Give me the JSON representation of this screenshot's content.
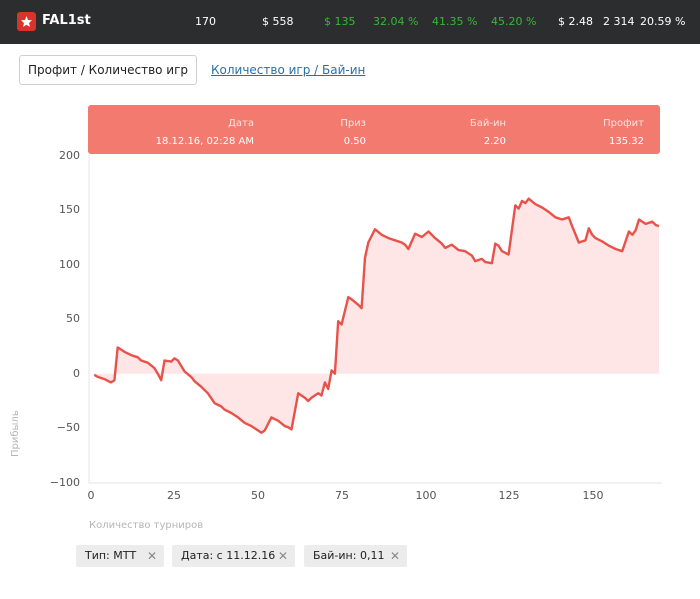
{
  "header": {
    "title": "FAL1st",
    "stats": [
      {
        "text": "170",
        "color": "#ffffff"
      },
      {
        "text": "$ 558",
        "color": "#ffffff"
      },
      {
        "text": "$ 135",
        "color": "#36b936"
      },
      {
        "text": "32.04 %",
        "color": "#36b936"
      },
      {
        "text": "41.35 %",
        "color": "#36b936"
      },
      {
        "text": "45.20 %",
        "color": "#36b936"
      },
      {
        "text": "$ 2.48",
        "color": "#ffffff"
      },
      {
        "text": "2 314",
        "color": "#ffffff"
      },
      {
        "text": "20.59 %",
        "color": "#ffffff"
      }
    ]
  },
  "tabs": {
    "active": "Профит / Количество игр",
    "other": "Количество игр / Бай-ин"
  },
  "tooltip": {
    "date_label": "Дата",
    "date_value": "18.12.16, 02:28 AM",
    "prize_label": "Приз",
    "prize_value": "0.50",
    "buyin_label": "Бай-ин",
    "buyin_value": "2.20",
    "profit_label": "Профит",
    "profit_value": "135.32"
  },
  "chart_data": {
    "type": "area",
    "xlabel": "Количество турниров",
    "ylabel": "Прибыль",
    "xlim": [
      0,
      170
    ],
    "ylim": [
      -100,
      200
    ],
    "xticks": [
      "0",
      "25",
      "50",
      "75",
      "100",
      "125",
      "150"
    ],
    "yticks": [
      "200",
      "150",
      "100",
      "50",
      "0",
      "−50",
      "−100"
    ],
    "line_color": "#e8524a",
    "fill_color": "#fde6e5",
    "x": [
      1,
      2,
      4,
      6,
      7,
      8,
      10,
      12,
      14,
      15,
      17,
      19,
      20,
      21,
      22,
      24,
      25,
      26,
      28,
      30,
      31,
      33,
      35,
      37,
      39,
      40,
      42,
      44,
      46,
      48,
      50,
      51,
      52,
      54,
      56,
      58,
      59,
      60,
      62,
      64,
      65,
      66,
      68,
      69,
      70,
      71,
      72,
      73,
      74,
      75,
      77,
      78,
      80,
      81,
      82,
      83,
      85,
      87,
      89,
      91,
      93,
      94,
      95,
      97,
      99,
      101,
      103,
      105,
      106,
      108,
      110,
      112,
      114,
      115,
      117,
      118,
      120,
      121,
      122,
      123,
      125,
      127,
      128,
      129,
      130,
      131,
      133,
      135,
      137,
      139,
      141,
      143,
      144,
      146,
      148,
      149,
      150,
      151,
      153,
      155,
      157,
      159,
      161,
      162,
      163,
      164,
      165,
      166,
      168,
      169,
      170
    ],
    "y": [
      -1,
      -3,
      -5,
      -8,
      -6,
      24,
      20,
      17,
      15,
      12,
      10,
      5,
      0,
      -6,
      12,
      11,
      14,
      12,
      2,
      -3,
      -7,
      -12,
      -18,
      -27,
      -30,
      -33,
      -36,
      -40,
      -45,
      -48,
      -52,
      -54,
      -52,
      -40,
      -43,
      -48,
      -49,
      -51,
      -18,
      -22,
      -25,
      -22,
      -18,
      -20,
      -8,
      -14,
      3,
      0,
      48,
      45,
      70,
      68,
      63,
      60,
      106,
      120,
      132,
      127,
      124,
      122,
      120,
      118,
      114,
      128,
      125,
      130,
      124,
      119,
      115,
      118,
      113,
      112,
      108,
      103,
      105,
      102,
      101,
      119,
      117,
      112,
      109,
      154,
      151,
      158,
      156,
      160,
      155,
      152,
      148,
      143,
      141,
      143,
      135,
      120,
      122,
      133,
      127,
      124,
      121,
      117,
      114,
      112,
      130,
      127,
      131,
      141,
      139,
      137,
      139,
      136,
      135
    ]
  },
  "filters": [
    {
      "label": "Тип: МТТ"
    },
    {
      "label": "Дата: с 11.12.16"
    },
    {
      "label": "Бай-ин: 0,11"
    }
  ],
  "filter_remove_glyph": "✕"
}
